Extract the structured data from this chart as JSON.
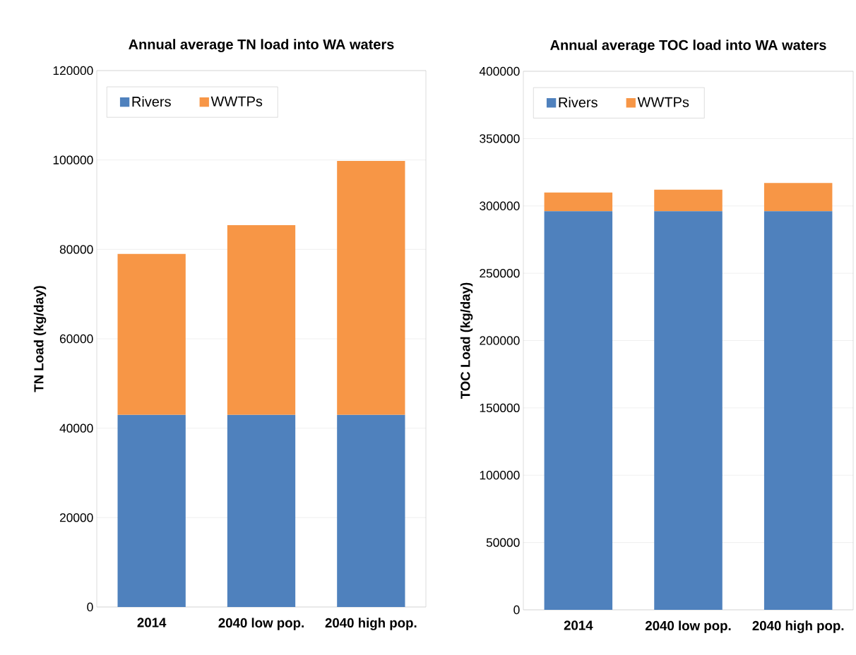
{
  "chart_data": [
    {
      "type": "bar",
      "stacked": true,
      "title": "Annual average TN load into WA waters",
      "ylabel": "TN Load (kg/day)",
      "categories": [
        "2014",
        "2040 low pop.",
        "2040 high pop."
      ],
      "series": [
        {
          "name": "Rivers",
          "color": "#4f81bd",
          "values": [
            43000,
            43000,
            43000
          ]
        },
        {
          "name": "WWTPs",
          "color": "#f79646",
          "values": [
            36000,
            42400,
            56800
          ]
        }
      ],
      "ylim": [
        0,
        120000
      ],
      "yticks": [
        0,
        20000,
        40000,
        60000,
        80000,
        100000,
        120000
      ],
      "grid": "y",
      "legend": "top left"
    },
    {
      "type": "bar",
      "stacked": true,
      "title": "Annual average TOC load into WA waters",
      "ylabel": "TOC Load (kg/day)",
      "categories": [
        "2014",
        "2040 low pop.",
        "2040 high pop."
      ],
      "series": [
        {
          "name": "Rivers",
          "color": "#4f81bd",
          "values": [
            296000,
            296000,
            296000
          ]
        },
        {
          "name": "WWTPs",
          "color": "#f79646",
          "values": [
            14000,
            16000,
            21000
          ]
        }
      ],
      "ylim": [
        0,
        400000
      ],
      "yticks": [
        0,
        50000,
        100000,
        150000,
        200000,
        250000,
        300000,
        350000,
        400000
      ],
      "grid": "y",
      "legend": "top left"
    }
  ]
}
